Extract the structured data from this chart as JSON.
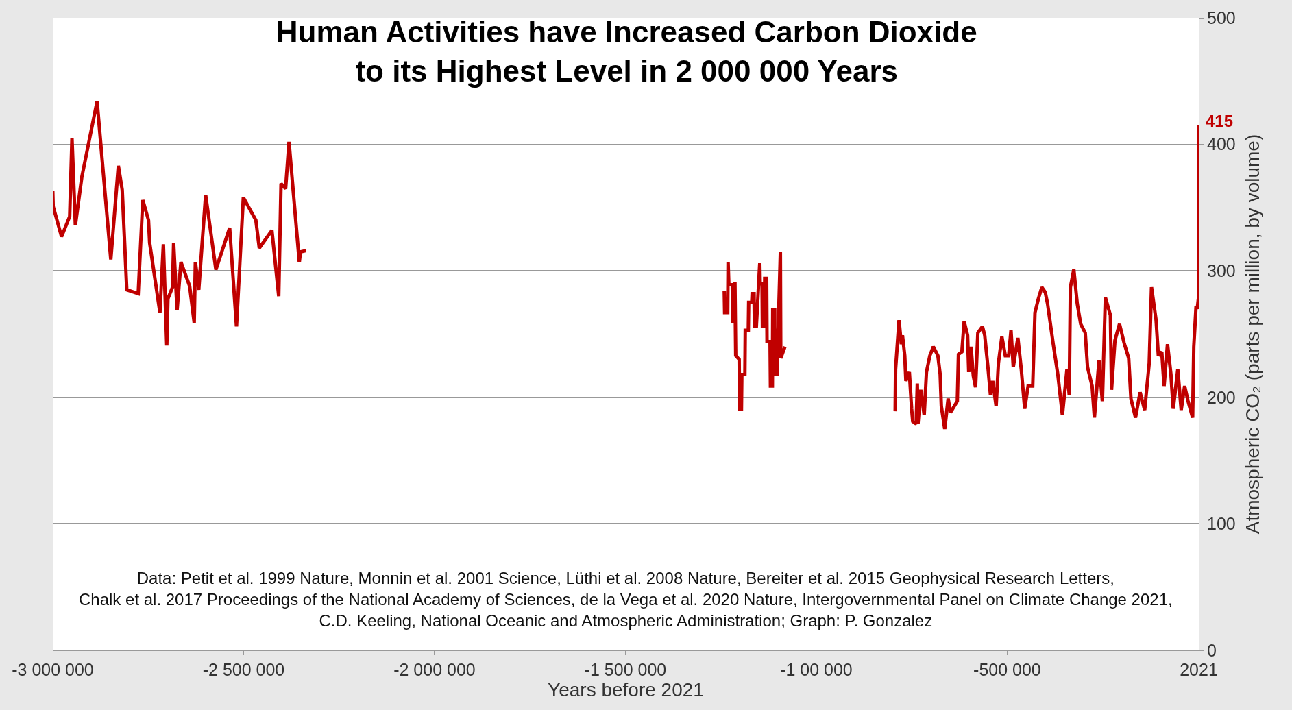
{
  "chart_data": {
    "type": "line",
    "title": "Human Activities have Increased Carbon Dioxide\nto its Highest Level in 2 000 000 Years",
    "xlabel": "Years before 2021",
    "ylabel": "Atmospheric CO₂ (parts per million, by volume)",
    "x": [
      -3000000,
      -2999000,
      -2977000,
      -2955700,
      -2949700,
      -2940800,
      -2924000,
      -2883900,
      -2848000,
      -2828200,
      -2818100,
      -2806100,
      -2776200,
      -2764200,
      -2749200,
      -2746200,
      -2719300,
      -2710300,
      -2701400,
      -2698400,
      -2686400,
      -2683400,
      -2674400,
      -2664300,
      -2641500,
      -2629500,
      -2626500,
      -2617600,
      -2599600,
      -2572700,
      -2536700,
      -2518800,
      -2500800,
      -2468000,
      -2459000,
      -2426000,
      -2408100,
      -2402100,
      -2390100,
      -2381200,
      -2354200,
      -2351200,
      -2336300,
      -1800000,
      -1241000,
      -1240000,
      -1232000,
      -1231000,
      -1229000,
      -1220000,
      -1219000,
      -1214000,
      -1213000,
      -1211000,
      -1202000,
      -1201000,
      -1196000,
      -1195000,
      -1187000,
      -1186000,
      -1178000,
      -1177000,
      -1169000,
      -1168000,
      -1163000,
      -1162000,
      -1157000,
      -1148000,
      -1147000,
      -1142000,
      -1141000,
      -1136000,
      -1135000,
      -1130000,
      -1129000,
      -1121000,
      -1120000,
      -1115000,
      -1114000,
      -1109000,
      -1108000,
      -1103000,
      -1094000,
      -1093000,
      -1082000,
      -950000,
      -793300,
      -792300,
      -783200,
      -777200,
      -774200,
      -768200,
      -765200,
      -756200,
      -750200,
      -747300,
      -738300,
      -735300,
      -733500,
      -726300,
      -717300,
      -711300,
      -702400,
      -693400,
      -681400,
      -675400,
      -672400,
      -663500,
      -654500,
      -648500,
      -630500,
      -627500,
      -618600,
      -612600,
      -603600,
      -600600,
      -594600,
      -588600,
      -582700,
      -576700,
      -564700,
      -558700,
      -549700,
      -543700,
      -537800,
      -528800,
      -522800,
      -513800,
      -504800,
      -495900,
      -489900,
      -483900,
      -471900,
      -462900,
      -454000,
      -445000,
      -433000,
      -427100,
      -418100,
      -409100,
      -400100,
      -394100,
      -379200,
      -367200,
      -355200,
      -343300,
      -337300,
      -334300,
      -325300,
      -316300,
      -307300,
      -295400,
      -289400,
      -277400,
      -271400,
      -259400,
      -250500,
      -242700,
      -229500,
      -226500,
      -217600,
      -205600,
      -193600,
      -181600,
      -175700,
      -163700,
      -151700,
      -139700,
      -127800,
      -121800,
      -109800,
      -103900,
      -94900,
      -88900,
      -79900,
      -70900,
      -64900,
      -53000,
      -44000,
      -35000,
      -26000,
      -14100,
      -11100,
      -5100,
      -2000,
      1800,
      2021
    ],
    "series": [
      {
        "color": "#c00000",
        "values": [
          363,
          351,
          327,
          343,
          405,
          336,
          374,
          434,
          309,
          383,
          364,
          285,
          282,
          356,
          340,
          322,
          267,
          321,
          241,
          278,
          287,
          322,
          269,
          307,
          288,
          259,
          307,
          285,
          360,
          301,
          334,
          256,
          358,
          340,
          318,
          332,
          280,
          369,
          365,
          402,
          307,
          315,
          316,
          null,
          284,
          267,
          267,
          307,
          289,
          289,
          260,
          260,
          291,
          233,
          230,
          191,
          191,
          218,
          218,
          253,
          253,
          275,
          275,
          282,
          282,
          256,
          256,
          306,
          290,
          290,
          256,
          256,
          294,
          294,
          244,
          244,
          209,
          209,
          269,
          269,
          218,
          218,
          315,
          231,
          240,
          null,
          189,
          222,
          261,
          242,
          249,
          233,
          213,
          220,
          191,
          181,
          179,
          211,
          179,
          206,
          186,
          220,
          233,
          240,
          233,
          218,
          193,
          175,
          199,
          188,
          197,
          234,
          236,
          260,
          249,
          220,
          240,
          217,
          208,
          251,
          256,
          249,
          222,
          202,
          213,
          193,
          227,
          248,
          233,
          233,
          253,
          224,
          247,
          222,
          191,
          209,
          209,
          267,
          278,
          287,
          283,
          274,
          242,
          218,
          186,
          222,
          202,
          287,
          301,
          274,
          258,
          251,
          224,
          209,
          184,
          229,
          197,
          279,
          265,
          206,
          245,
          258,
          243,
          231,
          199,
          184,
          204,
          190,
          227,
          287,
          261,
          233,
          236,
          209,
          242,
          218,
          191,
          222,
          190,
          209,
          197,
          184,
          240,
          272,
          270,
          280,
          415
        ]
      }
    ],
    "xlim": [
      -3000000,
      2021
    ],
    "xticks": [
      {
        "value": -3000000,
        "label": "-3 000 000"
      },
      {
        "value": -2500000,
        "label": "-2 500 000"
      },
      {
        "value": -2000000,
        "label": "-2 000 000"
      },
      {
        "value": -1500000,
        "label": "-1 500 000"
      },
      {
        "value": -1000000,
        "label": "-1 00 000"
      },
      {
        "value": -500000,
        "label": "-500 000"
      },
      {
        "value": 2021,
        "label": "2021"
      }
    ],
    "ylim": [
      0,
      500
    ],
    "yticks": [
      0,
      100,
      200,
      300,
      400,
      500
    ],
    "grid": "y",
    "marker": "none",
    "line_style": "solid",
    "annotations": [
      "Data: Petit et al. 1999 Nature, Monnin et al. 2001 Science, Lüthi et al. 2008 Nature, Bereiter et al. 2015 Geophysical Research Letters,\nChalk et al. 2017 Proceedings of the National Academy of Sciences, de la Vega et al. 2020 Nature, Intergovernmental Panel on Climate Change 2021,\nC.D. Keeling, National Oceanic and Atmospheric Administration; Graph: P. Gonzalez",
      "415"
    ]
  }
}
